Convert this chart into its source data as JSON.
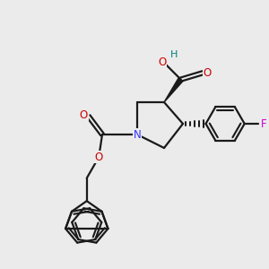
{
  "background_color": "#ebebeb",
  "bond_color": "#1a1a1a",
  "N_color": "#3333ff",
  "O_color": "#cc0000",
  "F_color": "#cc00cc",
  "H_color": "#008080",
  "line_width": 1.6,
  "figsize": [
    3.0,
    3.0
  ],
  "dpi": 100,
  "xlim": [
    0,
    10
  ],
  "ylim": [
    0,
    10
  ],
  "font_size": 8.5,
  "ring_r": 0.72,
  "flu_scale": 0.68
}
